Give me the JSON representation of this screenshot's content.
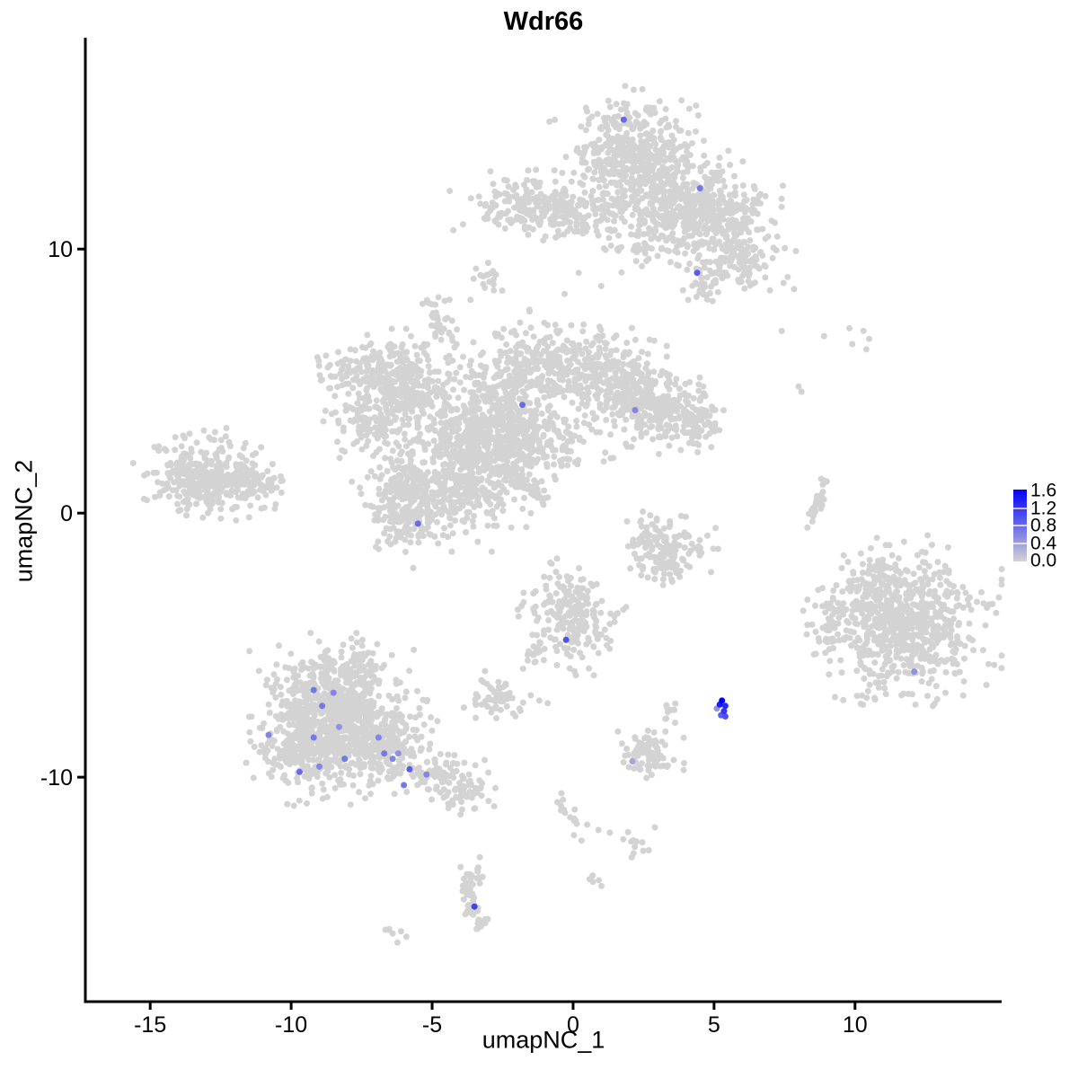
{
  "title": "Wdr66",
  "axes": {
    "x_label": "umapNC_1",
    "y_label": "umapNC_2",
    "x_ticks": [
      -15,
      -10,
      -5,
      0,
      5,
      10
    ],
    "y_ticks": [
      10,
      0,
      -10
    ]
  },
  "legend": {
    "labels": [
      "1.6",
      "1.2",
      "0.8",
      "0.4",
      "0.0"
    ],
    "vmax": 1.6,
    "high_color": "#0000FF",
    "low_color": "#D3D3D3"
  },
  "chart_data": {
    "type": "scatter",
    "title": "Wdr66",
    "xlabel": "umapNC_1",
    "ylabel": "umapNC_2",
    "x_range": [
      -17.3,
      15.2
    ],
    "y_range": [
      -18.5,
      17.9
    ],
    "grid": false,
    "point_color_zero": "#D3D3D3",
    "point_color_max": "#0000FF",
    "value_max": 1.6,
    "seed": 7,
    "gray_clusters": [
      {
        "cx": 2.1,
        "cy": 13.8,
        "sx": 1.05,
        "sy": 0.85,
        "n": 380
      },
      {
        "cx": 2.7,
        "cy": 12.2,
        "sx": 1.2,
        "sy": 0.8,
        "n": 220
      },
      {
        "cx": 4.0,
        "cy": 11.6,
        "sx": 0.8,
        "sy": 0.7,
        "n": 150
      },
      {
        "cx": 5.3,
        "cy": 11.5,
        "sx": 0.85,
        "sy": 0.7,
        "n": 220
      },
      {
        "cx": 5.8,
        "cy": 9.6,
        "sx": 0.75,
        "sy": 0.55,
        "n": 150
      },
      {
        "cx": -1.3,
        "cy": 11.6,
        "sx": 1.1,
        "sy": 0.5,
        "n": 200
      },
      {
        "cx": 0.4,
        "cy": 11.4,
        "sx": 0.7,
        "sy": 0.45,
        "n": 80
      },
      {
        "cx": 2.9,
        "cy": 10.2,
        "sx": 1.0,
        "sy": 0.5,
        "n": 60
      },
      {
        "cx": -3.1,
        "cy": 8.9,
        "sx": 0.25,
        "sy": 0.35,
        "n": 18
      },
      {
        "cx": 4.6,
        "cy": 8.6,
        "sx": 0.3,
        "sy": 0.4,
        "n": 22
      },
      {
        "cx": -4.8,
        "cy": 7.35,
        "sx": 0.3,
        "sy": 0.35,
        "n": 30
      },
      {
        "cx": -6.8,
        "cy": 5.3,
        "sx": 1.05,
        "sy": 0.6,
        "n": 240
      },
      {
        "cx": -7.0,
        "cy": 3.6,
        "sx": 0.85,
        "sy": 0.6,
        "n": 130
      },
      {
        "cx": -5.7,
        "cy": 4.4,
        "sx": 0.6,
        "sy": 0.5,
        "n": 90
      },
      {
        "cx": -4.3,
        "cy": 1.9,
        "sx": 1.0,
        "sy": 1.2,
        "n": 380
      },
      {
        "cx": -2.9,
        "cy": 3.7,
        "sx": 0.8,
        "sy": 1.1,
        "n": 320
      },
      {
        "cx": -1.3,
        "cy": 5.6,
        "sx": 0.8,
        "sy": 0.75,
        "n": 200
      },
      {
        "cx": 0.8,
        "cy": 5.3,
        "sx": 0.9,
        "sy": 0.8,
        "n": 220
      },
      {
        "cx": 2.2,
        "cy": 4.6,
        "sx": 0.7,
        "sy": 0.6,
        "n": 150
      },
      {
        "cx": 3.4,
        "cy": 3.8,
        "sx": 0.85,
        "sy": 0.65,
        "n": 220
      },
      {
        "cx": -1.6,
        "cy": 2.9,
        "sx": 1.1,
        "sy": 0.85,
        "n": 300
      },
      {
        "cx": -5.9,
        "cy": 0.3,
        "sx": 0.85,
        "sy": 0.85,
        "n": 260
      },
      {
        "cx": -3.4,
        "cy": 0.7,
        "sx": 0.9,
        "sy": 0.6,
        "n": 80
      },
      {
        "cx": 4.4,
        "cy": 3.4,
        "sx": 0.35,
        "sy": 0.5,
        "n": 40
      },
      {
        "cx": -13.2,
        "cy": 1.4,
        "sx": 0.9,
        "sy": 0.65,
        "n": 300
      },
      {
        "cx": -11.8,
        "cy": 1.1,
        "sx": 0.7,
        "sy": 0.45,
        "n": 120
      },
      {
        "cx": 2.7,
        "cy": -0.9,
        "sx": 0.45,
        "sy": 0.45,
        "n": 50
      },
      {
        "cx": 3.6,
        "cy": -1.4,
        "sx": 0.6,
        "sy": 0.55,
        "n": 90
      },
      {
        "cx": 2.9,
        "cy": -2.0,
        "sx": 0.4,
        "sy": 0.3,
        "n": 35
      },
      {
        "cx": 0.0,
        "cy": -3.9,
        "sx": 0.7,
        "sy": 0.8,
        "n": 210
      },
      {
        "cx": -2.6,
        "cy": -7.0,
        "sx": 0.5,
        "sy": 0.4,
        "n": 55
      },
      {
        "cx": -8.4,
        "cy": -7.2,
        "sx": 1.1,
        "sy": 0.95,
        "n": 450
      },
      {
        "cx": -9.4,
        "cy": -8.7,
        "sx": 0.95,
        "sy": 0.85,
        "n": 380
      },
      {
        "cx": -6.9,
        "cy": -8.7,
        "sx": 0.9,
        "sy": 0.75,
        "n": 320
      },
      {
        "cx": -7.8,
        "cy": -5.9,
        "sx": 0.9,
        "sy": 0.4,
        "n": 70
      },
      {
        "cx": 2.6,
        "cy": -9.1,
        "sx": 0.5,
        "sy": 0.5,
        "n": 80
      },
      {
        "cx": 3.5,
        "cy": -7.6,
        "sx": 0.2,
        "sy": 0.25,
        "n": 9
      },
      {
        "cx": 2.3,
        "cy": -12.6,
        "sx": 0.3,
        "sy": 0.25,
        "n": 12
      },
      {
        "cx": -3.6,
        "cy": -14.3,
        "sx": 0.22,
        "sy": 0.6,
        "n": 45
      },
      {
        "cx": -3.3,
        "cy": -15.2,
        "sx": 0.25,
        "sy": 0.3,
        "n": 14
      },
      {
        "cx": -6.4,
        "cy": -16.0,
        "sx": 0.2,
        "sy": 0.15,
        "n": 7
      },
      {
        "cx": 0.6,
        "cy": -14.0,
        "sx": 0.15,
        "sy": 0.12,
        "n": 5
      },
      {
        "cx": 11.7,
        "cy": -4.2,
        "sx": 1.25,
        "sy": 1.2,
        "n": 650
      },
      {
        "cx": 10.8,
        "cy": -2.6,
        "sx": 0.7,
        "sy": 0.5,
        "n": 90
      },
      {
        "cx": 9.0,
        "cy": -4.3,
        "sx": 0.3,
        "sy": 0.55,
        "n": 40
      }
    ],
    "gray_lines": [
      {
        "x1": -4.5,
        "y1": 6.8,
        "x2": -4.3,
        "y2": 5.8,
        "w": 0.15,
        "n": 7
      },
      {
        "x1": -2.4,
        "y1": 1.7,
        "x2": -0.9,
        "y2": 0.3,
        "w": 0.1,
        "n": 55
      },
      {
        "x1": 8.95,
        "y1": 1.1,
        "x2": 8.4,
        "y2": -0.3,
        "w": 0.12,
        "n": 30
      },
      {
        "x1": -1.2,
        "y1": -4.8,
        "x2": -1.5,
        "y2": -5.9,
        "w": 0.15,
        "n": 18
      },
      {
        "x1": -5.2,
        "y1": -9.6,
        "x2": -3.5,
        "y2": -10.6,
        "w": 0.4,
        "n": 110
      },
      {
        "x1": -0.5,
        "y1": -10.4,
        "x2": 0.1,
        "y2": -12.0,
        "w": 0.2,
        "n": 14
      }
    ],
    "gray_singles": [
      [
        7.4,
        6.9
      ],
      [
        8.9,
        6.7
      ],
      [
        9.8,
        7.0
      ],
      [
        10.3,
        6.9
      ],
      [
        10.5,
        6.6
      ],
      [
        9.9,
        6.4
      ],
      [
        10.4,
        6.2
      ],
      [
        8.0,
        4.8
      ],
      [
        8.1,
        4.6
      ],
      [
        0.2,
        9.1
      ],
      [
        1.0,
        8.6
      ],
      [
        -0.3,
        8.3
      ],
      [
        8.8,
        1.3
      ],
      [
        9.0,
        1.2
      ],
      [
        1.0,
        -4.6
      ],
      [
        1.2,
        -5.0
      ],
      [
        0.9,
        -5.3
      ],
      [
        1.3,
        -4.2
      ],
      [
        -1.5,
        -6.9
      ],
      [
        -1.2,
        -7.1
      ],
      [
        -0.9,
        -7.2
      ],
      [
        -3.0,
        -10.9
      ],
      [
        -2.8,
        -11.1
      ],
      [
        0.5,
        -11.8
      ],
      [
        0.9,
        -12.0
      ],
      [
        1.3,
        -12.1
      ],
      [
        0.3,
        -12.4
      ],
      [
        13.3,
        -3.1
      ],
      [
        13.5,
        -4.0
      ],
      [
        13.4,
        -5.0
      ],
      [
        9.6,
        -1.6
      ],
      [
        13.2,
        -2.0
      ]
    ],
    "expressing_cells": [
      [
        1.8,
        14.9,
        0.8
      ],
      [
        4.5,
        12.3,
        0.7
      ],
      [
        4.4,
        9.1,
        0.9
      ],
      [
        -1.8,
        4.1,
        0.8
      ],
      [
        2.2,
        3.9,
        0.6
      ],
      [
        -5.5,
        -0.4,
        0.8
      ],
      [
        12.1,
        -6.0,
        0.5
      ],
      [
        -9.2,
        -6.7,
        0.7
      ],
      [
        -8.5,
        -6.8,
        0.6
      ],
      [
        -8.9,
        -7.3,
        0.7
      ],
      [
        -8.3,
        -8.1,
        0.5
      ],
      [
        -10.8,
        -8.4,
        0.6
      ],
      [
        -9.2,
        -8.5,
        0.7
      ],
      [
        -6.9,
        -8.5,
        0.6
      ],
      [
        -6.7,
        -9.1,
        0.7
      ],
      [
        -6.2,
        -9.1,
        0.5
      ],
      [
        -6.4,
        -9.3,
        0.6
      ],
      [
        -8.1,
        -9.3,
        0.7
      ],
      [
        -9.0,
        -9.6,
        0.6
      ],
      [
        -9.7,
        -9.8,
        0.8
      ],
      [
        -5.8,
        -9.7,
        0.9
      ],
      [
        -5.2,
        -9.9,
        0.6
      ],
      [
        -6.0,
        -10.3,
        0.7
      ],
      [
        2.1,
        -9.4,
        0.35
      ],
      [
        5.28,
        -7.1,
        1.6
      ],
      [
        5.2,
        -7.25,
        1.4
      ],
      [
        5.4,
        -7.3,
        1.3
      ],
      [
        5.1,
        -7.4,
        0.5
      ],
      [
        5.35,
        -7.5,
        1.2
      ],
      [
        5.25,
        -7.65,
        0.9
      ],
      [
        5.4,
        -7.7,
        1.0
      ],
      [
        -0.25,
        -4.8,
        1.0
      ],
      [
        -3.5,
        -14.9,
        1.1
      ]
    ]
  }
}
